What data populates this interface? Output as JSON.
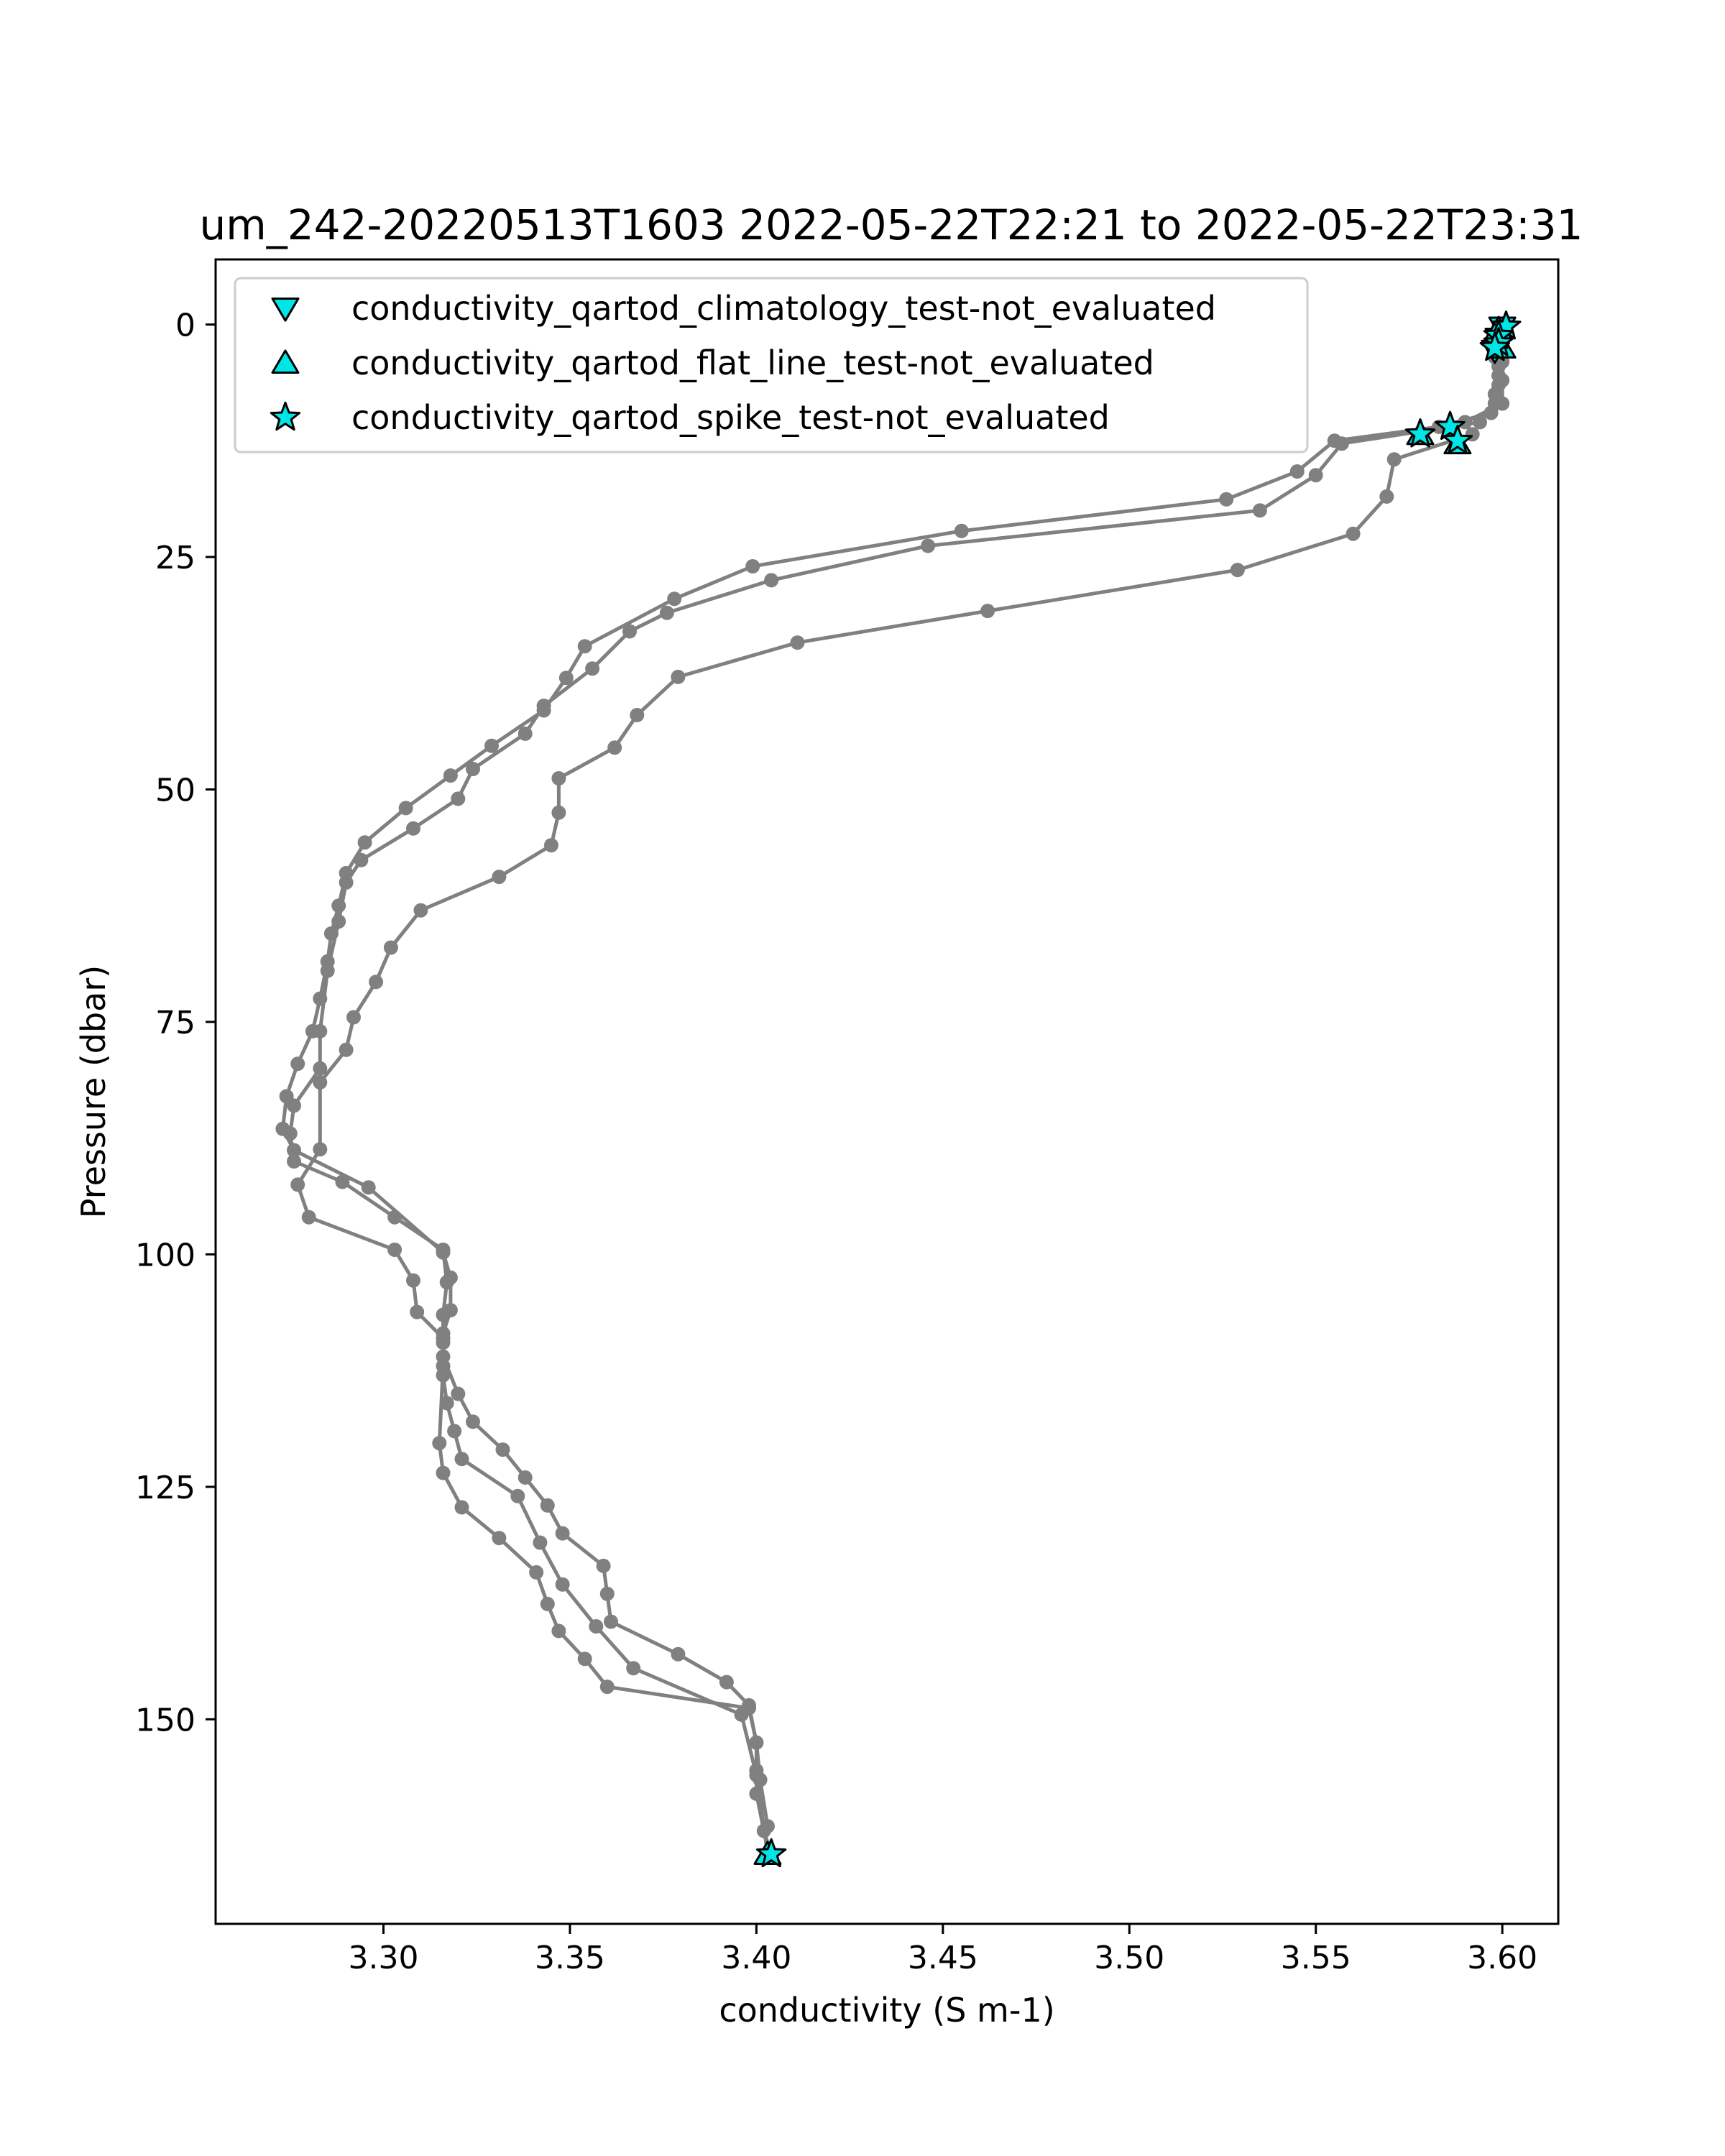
{
  "chart_data": {
    "type": "line",
    "title": "um_242-20220513T1603 2022-05-22T22:21 to 2022-05-22T23:31",
    "xlabel": "conductivity (S m-1)",
    "ylabel": "Pressure (dbar)",
    "xlim": [
      3.255,
      3.615
    ],
    "ylim": [
      172,
      -7
    ],
    "y_inverted": true,
    "xticks": [
      3.3,
      3.35,
      3.4,
      3.45,
      3.5,
      3.55,
      3.6
    ],
    "xtick_labels": [
      "3.30",
      "3.35",
      "3.40",
      "3.45",
      "3.50",
      "3.55",
      "3.60"
    ],
    "yticks": [
      0,
      25,
      50,
      75,
      100,
      125,
      150
    ],
    "ytick_labels": [
      "0",
      "25",
      "50",
      "75",
      "100",
      "125",
      "150"
    ],
    "grid": false,
    "legend_position": "top-left",
    "colors": {
      "profile": "#808080",
      "flag_fill": "#00e5e5",
      "flag_edge": "#000000"
    },
    "series": [
      {
        "points": [
          [
            3.599,
            0.3
          ],
          [
            3.599,
            1.5
          ],
          [
            3.598,
            3.5
          ],
          [
            3.599,
            5.5
          ],
          [
            3.598,
            7.5
          ],
          [
            3.597,
            9.5
          ],
          [
            3.583,
            11.0
          ],
          [
            3.555,
            12.5
          ],
          [
            3.545,
            15.8
          ],
          [
            3.526,
            18.8
          ],
          [
            3.455,
            22.2
          ],
          [
            3.399,
            26.0
          ],
          [
            3.378,
            29.5
          ],
          [
            3.354,
            34.6
          ],
          [
            3.349,
            38.0
          ],
          [
            3.343,
            41.5
          ],
          [
            3.329,
            45.3
          ],
          [
            3.318,
            48.5
          ],
          [
            3.306,
            52.0
          ],
          [
            3.295,
            55.7
          ],
          [
            3.29,
            59.0
          ],
          [
            3.288,
            62.5
          ],
          [
            3.286,
            65.5
          ],
          [
            3.285,
            68.5
          ],
          [
            3.283,
            72.5
          ],
          [
            3.281,
            76.0
          ],
          [
            3.277,
            79.5
          ],
          [
            3.274,
            83.0
          ],
          [
            3.273,
            86.5
          ],
          [
            3.276,
            88.8
          ],
          [
            3.296,
            92.8
          ],
          [
            3.316,
            99.8
          ],
          [
            3.318,
            102.5
          ],
          [
            3.318,
            106.0
          ],
          [
            3.316,
            108.5
          ],
          [
            3.316,
            111.0
          ],
          [
            3.32,
            115.0
          ],
          [
            3.324,
            118.0
          ],
          [
            3.332,
            121.0
          ],
          [
            3.338,
            124.0
          ],
          [
            3.344,
            127.0
          ],
          [
            3.348,
            130.0
          ],
          [
            3.359,
            133.5
          ],
          [
            3.36,
            136.5
          ],
          [
            3.361,
            139.5
          ],
          [
            3.379,
            143.0
          ],
          [
            3.392,
            146.0
          ],
          [
            3.398,
            148.5
          ],
          [
            3.4,
            152.5
          ],
          [
            3.4,
            155.5
          ],
          [
            3.4,
            158.0
          ],
          [
            3.402,
            162.0
          ],
          [
            3.404,
            164.5
          ]
        ]
      },
      {
        "points": [
          [
            3.6,
            0.5
          ],
          [
            3.599,
            2.5
          ],
          [
            3.599,
            4.5
          ],
          [
            3.599,
            6.5
          ],
          [
            3.598,
            8.5
          ],
          [
            3.594,
            10.5
          ],
          [
            3.557,
            12.8
          ],
          [
            3.55,
            16.2
          ],
          [
            3.535,
            20.0
          ],
          [
            3.446,
            23.8
          ],
          [
            3.404,
            27.5
          ],
          [
            3.376,
            31.0
          ],
          [
            3.366,
            33.0
          ],
          [
            3.356,
            37.0
          ],
          [
            3.343,
            41.0
          ],
          [
            3.338,
            44.0
          ],
          [
            3.324,
            47.8
          ],
          [
            3.32,
            51.0
          ],
          [
            3.308,
            54.2
          ],
          [
            3.294,
            57.6
          ],
          [
            3.29,
            60.0
          ],
          [
            3.288,
            64.2
          ],
          [
            3.285,
            69.5
          ],
          [
            3.283,
            76.0
          ],
          [
            3.283,
            80.0
          ],
          [
            3.276,
            84.0
          ],
          [
            3.275,
            87.0
          ],
          [
            3.276,
            90.0
          ],
          [
            3.289,
            92.2
          ],
          [
            3.303,
            96.0
          ],
          [
            3.316,
            99.5
          ],
          [
            3.317,
            103.0
          ],
          [
            3.316,
            106.5
          ],
          [
            3.316,
            109.5
          ],
          [
            3.316,
            113.0
          ],
          [
            3.317,
            116.0
          ],
          [
            3.319,
            119.0
          ],
          [
            3.321,
            122.0
          ],
          [
            3.336,
            126.0
          ],
          [
            3.342,
            131.0
          ],
          [
            3.348,
            135.5
          ],
          [
            3.357,
            140.0
          ],
          [
            3.367,
            144.5
          ],
          [
            3.396,
            149.5
          ],
          [
            3.4,
            156.0
          ],
          [
            3.403,
            164.5
          ]
        ]
      },
      {
        "points": [
          [
            3.601,
            0.2
          ],
          [
            3.6,
            2.0
          ],
          [
            3.6,
            4.0
          ],
          [
            3.6,
            6.0
          ],
          [
            3.6,
            8.5
          ],
          [
            3.59,
            10.5
          ],
          [
            3.592,
            11.8
          ],
          [
            3.571,
            14.5
          ],
          [
            3.569,
            18.5
          ],
          [
            3.56,
            22.5
          ],
          [
            3.529,
            26.4
          ],
          [
            3.462,
            30.8
          ],
          [
            3.411,
            34.2
          ],
          [
            3.379,
            37.9
          ],
          [
            3.368,
            42.0
          ],
          [
            3.362,
            45.5
          ],
          [
            3.347,
            48.8
          ],
          [
            3.347,
            52.5
          ],
          [
            3.345,
            56.0
          ],
          [
            3.331,
            59.4
          ],
          [
            3.31,
            63.0
          ],
          [
            3.302,
            67.0
          ],
          [
            3.298,
            70.7
          ],
          [
            3.292,
            74.5
          ],
          [
            3.29,
            78.0
          ],
          [
            3.283,
            81.5
          ],
          [
            3.283,
            88.7
          ],
          [
            3.277,
            92.5
          ],
          [
            3.28,
            96.0
          ],
          [
            3.303,
            99.5
          ],
          [
            3.308,
            102.8
          ],
          [
            3.309,
            106.2
          ],
          [
            3.316,
            109.0
          ],
          [
            3.316,
            112.0
          ],
          [
            3.315,
            120.3
          ],
          [
            3.316,
            123.5
          ],
          [
            3.321,
            127.2
          ],
          [
            3.331,
            130.5
          ],
          [
            3.341,
            134.2
          ],
          [
            3.344,
            137.6
          ],
          [
            3.347,
            140.5
          ],
          [
            3.354,
            143.5
          ],
          [
            3.36,
            146.5
          ],
          [
            3.398,
            148.8
          ],
          [
            3.4,
            152.5
          ],
          [
            3.401,
            156.5
          ],
          [
            3.403,
            161.5
          ]
        ]
      }
    ],
    "flag_series": [
      {
        "name": "conductivity_qartod_climatology_test-not_evaluated",
        "marker": "triangle-down",
        "points": [
          [
            3.6,
            0.3
          ],
          [
            3.599,
            1.5
          ],
          [
            3.598,
            2.8
          ]
        ]
      },
      {
        "name": "conductivity_qartod_flat_line_test-not_evaluated",
        "marker": "triangle-up",
        "points": [
          [
            3.599,
            0.5
          ],
          [
            3.6,
            2.5
          ],
          [
            3.578,
            11.8
          ],
          [
            3.588,
            12.8
          ],
          [
            3.403,
            164.5
          ]
        ]
      },
      {
        "name": "conductivity_qartod_spike_test-not_evaluated",
        "marker": "star",
        "points": [
          [
            3.601,
            0.2
          ],
          [
            3.599,
            1.2
          ],
          [
            3.599,
            2.0
          ],
          [
            3.598,
            2.5
          ],
          [
            3.578,
            11.8
          ],
          [
            3.586,
            11.0
          ],
          [
            3.588,
            12.5
          ],
          [
            3.404,
            164.5
          ]
        ]
      }
    ]
  }
}
